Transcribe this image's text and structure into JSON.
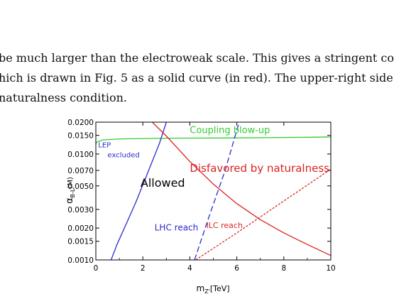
{
  "paper": {
    "lines": [
      "be much larger than the electroweak scale. This gives a stringent co",
      "hich is drawn in Fig. 5 as a solid curve (in red). The upper-right side",
      "naturalness condition."
    ]
  },
  "chart_data": {
    "type": "line",
    "xlabel": "m",
    "xlabel_sub": "Z'",
    "xlabel_unit": "[TeV]",
    "ylabel": "α",
    "ylabel_sub": "B-L",
    "ylabel_arg": "(M)",
    "xlim": [
      0,
      10
    ],
    "ylim": [
      0.001,
      0.02
    ],
    "yscale": "log",
    "x_ticks": [
      "0",
      "2",
      "4",
      "6",
      "8",
      "10"
    ],
    "y_ticks": [
      {
        "v": 0.001,
        "label": "0.0010"
      },
      {
        "v": 0.0015,
        "label": "0.0015"
      },
      {
        "v": 0.002,
        "label": "0.0020"
      },
      {
        "v": 0.003,
        "label": "0.0030"
      },
      {
        "v": 0.005,
        "label": "0.0050"
      },
      {
        "v": 0.007,
        "label": "0.0070"
      },
      {
        "v": 0.01,
        "label": "0.0100"
      },
      {
        "v": 0.015,
        "label": "0.0150"
      },
      {
        "v": 0.02,
        "label": "0.0200"
      }
    ],
    "series": [
      {
        "key": "coupling",
        "color": "#33cc33",
        "style": "solid",
        "points": [
          [
            0,
            0.0125
          ],
          [
            0.05,
            0.013
          ],
          [
            0.3,
            0.0136
          ],
          [
            1,
            0.0139
          ],
          [
            3,
            0.0141
          ],
          [
            6,
            0.0142
          ],
          [
            9,
            0.0144
          ],
          [
            10,
            0.0145
          ]
        ]
      },
      {
        "key": "lep",
        "color": "#2b2bcc",
        "style": "solid",
        "points": [
          [
            0.65,
            0.001
          ],
          [
            0.9,
            0.0014
          ],
          [
            1.3,
            0.0022
          ],
          [
            1.7,
            0.0035
          ],
          [
            2.1,
            0.0058
          ],
          [
            2.4,
            0.0085
          ],
          [
            2.7,
            0.0125
          ],
          [
            3.0,
            0.02
          ]
        ]
      },
      {
        "key": "natural",
        "color": "#dd2222",
        "style": "solid",
        "points": [
          [
            2.4,
            0.02
          ],
          [
            3.0,
            0.0148
          ],
          [
            4.0,
            0.0085
          ],
          [
            5.0,
            0.0052
          ],
          [
            6.0,
            0.0034
          ],
          [
            7.0,
            0.0024
          ],
          [
            8.0,
            0.0018
          ],
          [
            9.0,
            0.0014
          ],
          [
            10.0,
            0.0011
          ]
        ]
      },
      {
        "key": "lhc",
        "color": "#2b2bcc",
        "style": "dashed",
        "points": [
          [
            4.2,
            0.001
          ],
          [
            4.8,
            0.0025
          ],
          [
            5.5,
            0.007
          ],
          [
            6.1,
            0.02
          ]
        ]
      },
      {
        "key": "ilc",
        "color": "#dd2222",
        "style": "dotted",
        "points": [
          [
            4.25,
            0.001
          ],
          [
            6.0,
            0.0018
          ],
          [
            8.0,
            0.0036
          ],
          [
            10.0,
            0.0072
          ]
        ]
      }
    ],
    "annotations": [
      {
        "key": "coupling_label",
        "text": "Coupling blow-up",
        "x": 4.0,
        "y": 0.0158,
        "color": "#33cc33",
        "size": 13
      },
      {
        "key": "lep_label_1",
        "text": "LEP",
        "x": 0.1,
        "y": 0.0116,
        "color": "#2b2bcc",
        "size": 10
      },
      {
        "key": "lep_label_2",
        "text": "excluded",
        "x": 0.5,
        "y": 0.0093,
        "color": "#2b2bcc",
        "size": 10
      },
      {
        "key": "allowed_label",
        "text": "Allowed",
        "x": 1.9,
        "y": 0.0049,
        "color": "#000000",
        "size": 16
      },
      {
        "key": "disfavored_label",
        "text": "Disfavored by naturalness",
        "x": 4.0,
        "y": 0.0068,
        "color": "#dd2222",
        "size": 15
      },
      {
        "key": "lhc_label",
        "text": "LHC reach",
        "x": 2.5,
        "y": 0.0019,
        "color": "#2b2bcc",
        "size": 12
      },
      {
        "key": "ilc_label",
        "text": "ILC reach",
        "x": 4.7,
        "y": 0.002,
        "color": "#dd2222",
        "size": 11
      }
    ]
  }
}
